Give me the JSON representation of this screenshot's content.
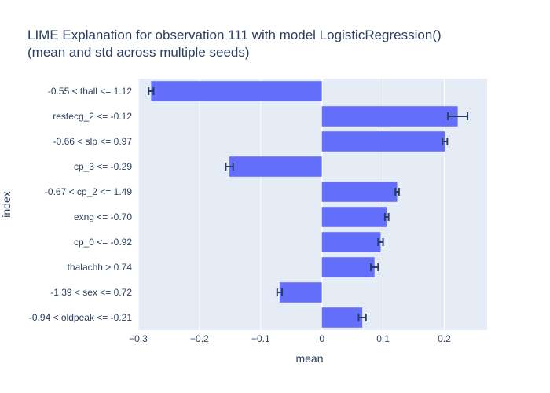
{
  "chart_data": {
    "type": "bar",
    "orientation": "horizontal",
    "title_line1": "LIME Explanation for observation 111 with model LogisticRegression()",
    "title_line2": "(mean and std across multiple seeds)",
    "xlabel": "mean",
    "ylabel": "index",
    "xlim": [
      -0.3,
      0.27
    ],
    "xticks": [
      -0.3,
      -0.2,
      -0.1,
      0,
      0.1,
      0.2
    ],
    "xtick_labels": [
      "−0.3",
      "−0.2",
      "−0.1",
      "0",
      "0.1",
      "0.2"
    ],
    "grid": true,
    "bar_color": "#636efa",
    "errorbar_color": "#2a3f5f",
    "plot_bg": "#e5ecf6",
    "categories": [
      "-0.55 < thall <= 1.12",
      "restecg_2 <= -0.12",
      "-0.66 < slp <= 0.97",
      "cp_3 <= -0.29",
      "-0.67 < cp_2 <= 1.49",
      "exng <= -0.70",
      "cp_0 <= -0.92",
      "thalachh > 0.74",
      "-1.39 < sex <= 0.72",
      "-0.94 < oldpeak <= -0.21"
    ],
    "values": [
      -0.279,
      0.222,
      0.201,
      -0.151,
      0.123,
      0.106,
      0.096,
      0.086,
      -0.069,
      0.066
    ],
    "errors": [
      0.004,
      0.016,
      0.004,
      0.006,
      0.003,
      0.003,
      0.004,
      0.006,
      0.004,
      0.006
    ]
  }
}
